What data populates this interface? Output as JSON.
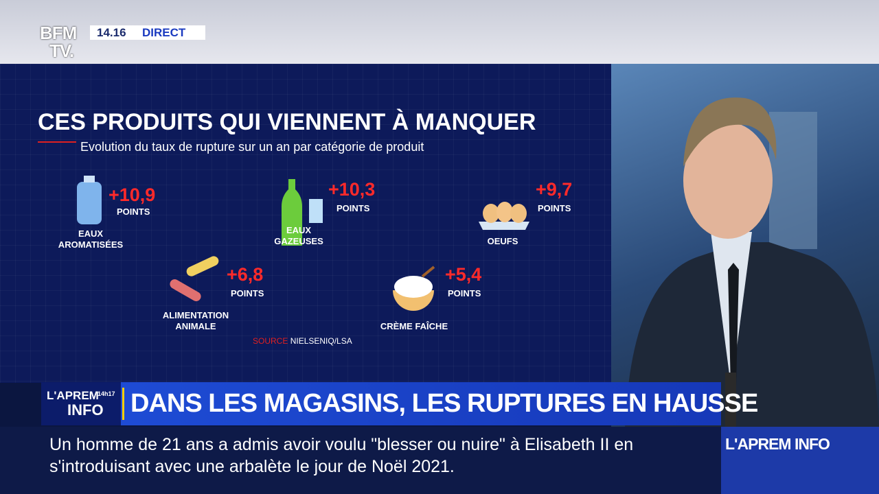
{
  "logo": {
    "line1": "BFM",
    "line2": "TV."
  },
  "clock": {
    "time": "14.16",
    "status": "DIRECT"
  },
  "infographic": {
    "title": "CES PRODUITS QUI VIENNENT À MANQUER",
    "subtitle": "Evolution du taux de rupture sur un an par catégorie de produit",
    "items": [
      {
        "value": "+10,9",
        "unit": "POINTS",
        "label": [
          "EAUX",
          "AROMATISÉES"
        ]
      },
      {
        "value": "+10,3",
        "unit": "POINTS",
        "label": [
          "EAUX",
          "GAZEUSES"
        ]
      },
      {
        "value": "+9,7",
        "unit": "POINTS",
        "label": [
          "OEUFS"
        ]
      },
      {
        "value": "+6,8",
        "unit": "POINTS",
        "label": [
          "ALIMENTATION",
          "ANIMALE"
        ]
      },
      {
        "value": "+5,4",
        "unit": "POINTS",
        "label": [
          "CRÈME FAÎCHE"
        ]
      }
    ],
    "source_label": "SOURCE",
    "source": "NIELSENIQ/LSA"
  },
  "banner": {
    "show_line1": "L'APREM",
    "show_hours": "14h17",
    "show_line2": "INFO",
    "headline": "DANS LES MAGASINS, LES RUPTURES EN HAUSSE"
  },
  "ticker": {
    "lines": [
      "Un homme de 21 ans a admis avoir voulu \"blesser ou nuire\" à Elisabeth II en",
      "s'introduisant avec une arbalète le jour de Noël 2021."
    ],
    "brand": "L'APREM INFO"
  }
}
